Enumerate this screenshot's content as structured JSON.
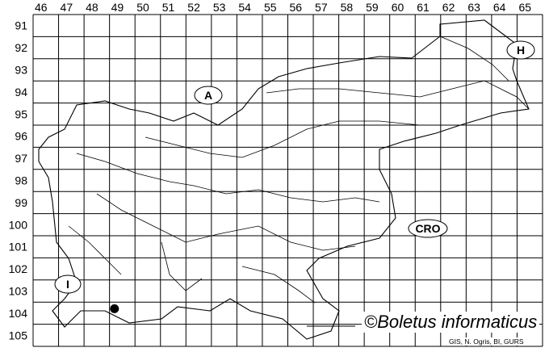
{
  "grid": {
    "columns": [
      "46",
      "47",
      "48",
      "49",
      "50",
      "51",
      "52",
      "53",
      "54",
      "55",
      "56",
      "57",
      "58",
      "59",
      "60",
      "61",
      "62",
      "63",
      "64",
      "65"
    ],
    "rows": [
      "91",
      "92",
      "93",
      "94",
      "95",
      "96",
      "97",
      "98",
      "99",
      "100",
      "101",
      "102",
      "103",
      "104",
      "105"
    ]
  },
  "country_labels": [
    {
      "id": "austria",
      "text": "A"
    },
    {
      "id": "hungary",
      "text": "H"
    },
    {
      "id": "croatia",
      "text": "CRO"
    },
    {
      "id": "italy",
      "text": "I"
    }
  ],
  "records": [
    {
      "column": 49,
      "row": 104
    }
  ],
  "credit": "©Boletus informaticus",
  "source": "GIS, N. Ogris, BI, GURS"
}
